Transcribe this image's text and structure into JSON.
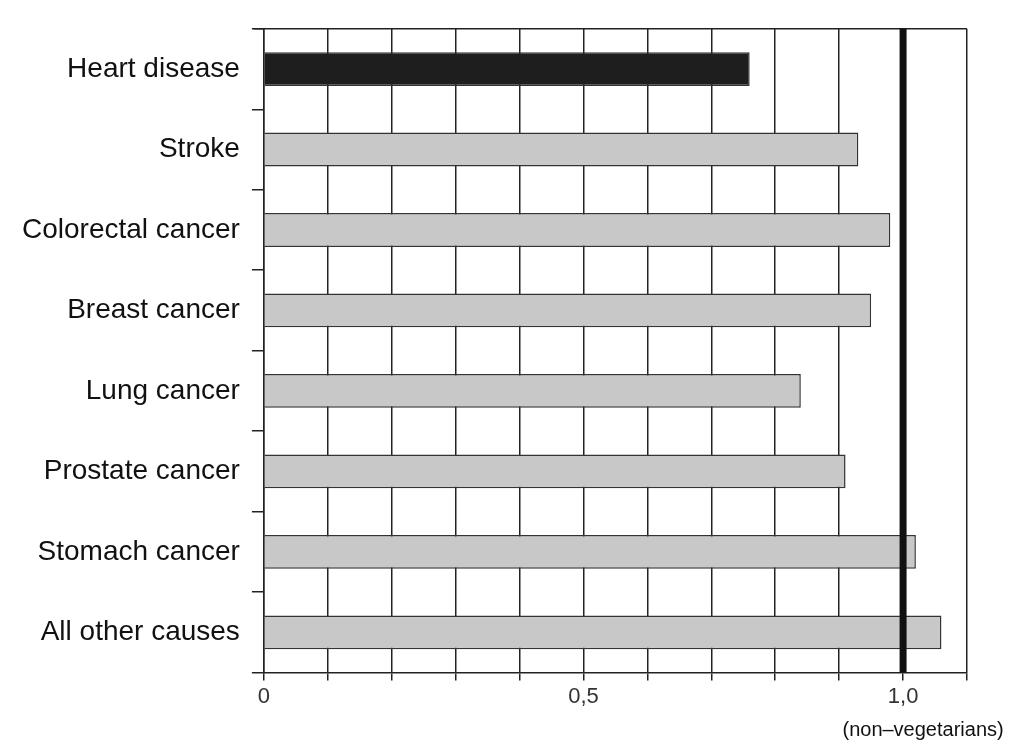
{
  "chart_data": {
    "type": "bar",
    "orientation": "horizontal",
    "categories": [
      "Heart disease",
      "Stroke",
      "Colorectal cancer",
      "Breast cancer",
      "Lung cancer",
      "Prostate cancer",
      "Stomach cancer",
      "All other causes"
    ],
    "values": [
      0.76,
      0.93,
      0.98,
      0.95,
      0.84,
      0.91,
      1.02,
      1.06
    ],
    "colors": [
      "#1e1e1e",
      "#c8c8c8",
      "#c8c8c8",
      "#c8c8c8",
      "#c8c8c8",
      "#c8c8c8",
      "#c8c8c8",
      "#c8c8c8"
    ],
    "xlim": [
      0,
      1.1
    ],
    "xticks": [
      {
        "value": 0,
        "label": "0"
      },
      {
        "value": 0.1,
        "label": null
      },
      {
        "value": 0.2,
        "label": null
      },
      {
        "value": 0.3,
        "label": null
      },
      {
        "value": 0.4,
        "label": null
      },
      {
        "value": 0.5,
        "label": "0,5"
      },
      {
        "value": 0.6,
        "label": null
      },
      {
        "value": 0.7,
        "label": null
      },
      {
        "value": 0.8,
        "label": null
      },
      {
        "value": 0.9,
        "label": null
      },
      {
        "value": 1.0,
        "label": "1,0"
      },
      {
        "value": 1.1,
        "label": null
      }
    ],
    "grid": "x",
    "legend": false,
    "ref_lines": [
      {
        "axis": "x",
        "value": 1.0,
        "label": "(non–vegetarians)",
        "color": "#111111"
      }
    ]
  }
}
